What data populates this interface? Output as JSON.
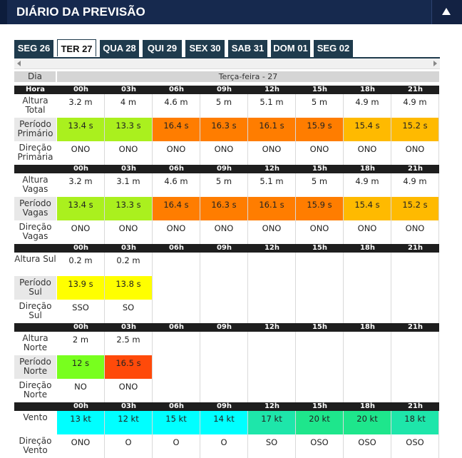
{
  "header": {
    "title": "DIÁRIO DA PREVISÃO"
  },
  "tabs": [
    {
      "label": "SEG 26",
      "active": false
    },
    {
      "label": "TER 27",
      "active": true
    },
    {
      "label": "QUA 28",
      "active": false
    },
    {
      "label": "QUI 29",
      "active": false
    },
    {
      "label": "SEX 30",
      "active": false
    },
    {
      "label": "SAB 31",
      "active": false
    },
    {
      "label": "DOM 01",
      "active": false
    },
    {
      "label": "SEG 02",
      "active": false
    }
  ],
  "table": {
    "day_label": "Dia",
    "day_title": "Terça-feira - 27",
    "hour_label": "Hora",
    "hours": [
      "00h",
      "03h",
      "06h",
      "09h",
      "12h",
      "15h",
      "18h",
      "21h"
    ],
    "sections": [
      {
        "rows": [
          {
            "label": "Altura Total",
            "shaded": false,
            "values": [
              "3.2 m",
              "4 m",
              "4.6 m",
              "5 m",
              "5.1 m",
              "5 m",
              "4.9 m",
              "4.9 m"
            ],
            "colors": []
          },
          {
            "label": "Período Primário",
            "shaded": true,
            "values": [
              "13.4 s",
              "13.3 s",
              "16.4 s",
              "16.3 s",
              "16.1 s",
              "15.9 s",
              "15.4 s",
              "15.2 s"
            ],
            "colors": [
              "#aaf01e",
              "#aaf01e",
              "#ff7d00",
              "#ff7d00",
              "#ff7d00",
              "#ff7d00",
              "#ffba00",
              "#ffba00"
            ]
          },
          {
            "label": "Direção Primária",
            "shaded": false,
            "values": [
              "ONO",
              "ONO",
              "ONO",
              "ONO",
              "ONO",
              "ONO",
              "ONO",
              "ONO"
            ],
            "colors": []
          }
        ]
      },
      {
        "rows": [
          {
            "label": "Altura Vagas",
            "shaded": false,
            "values": [
              "3.2 m",
              "3.1 m",
              "4.6 m",
              "5 m",
              "5.1 m",
              "5 m",
              "4.9 m",
              "4.9 m"
            ],
            "colors": []
          },
          {
            "label": "Período Vagas",
            "shaded": true,
            "values": [
              "13.4 s",
              "13.3 s",
              "16.4 s",
              "16.3 s",
              "16.1 s",
              "15.9 s",
              "15.4 s",
              "15.2 s"
            ],
            "colors": [
              "#aaf01e",
              "#aaf01e",
              "#ff7d00",
              "#ff7d00",
              "#ff7d00",
              "#ff7d00",
              "#ffba00",
              "#ffba00"
            ]
          },
          {
            "label": "Direção Vagas",
            "shaded": false,
            "values": [
              "ONO",
              "ONO",
              "ONO",
              "ONO",
              "ONO",
              "ONO",
              "ONO",
              "ONO"
            ],
            "colors": []
          }
        ]
      },
      {
        "rows": [
          {
            "label": "Altura Sul",
            "shaded": false,
            "values": [
              "0.2 m",
              "0.2 m",
              "",
              "",
              "",
              "",
              "",
              ""
            ],
            "colors": []
          },
          {
            "label": "Período Sul",
            "shaded": true,
            "values": [
              "13.9 s",
              "13.8 s",
              "",
              "",
              "",
              "",
              "",
              ""
            ],
            "colors": [
              "#ffff00",
              "#ffff00",
              "",
              "",
              "",
              "",
              "",
              ""
            ]
          },
          {
            "label": "Direção Sul",
            "shaded": false,
            "values": [
              "SSO",
              "SO",
              "",
              "",
              "",
              "",
              "",
              ""
            ],
            "colors": []
          }
        ]
      },
      {
        "rows": [
          {
            "label": "Altura Norte",
            "shaded": false,
            "values": [
              "2 m",
              "2.5 m",
              "",
              "",
              "",
              "",
              "",
              ""
            ],
            "colors": []
          },
          {
            "label": "Período Norte",
            "shaded": true,
            "values": [
              "12 s",
              "16.5 s",
              "",
              "",
              "",
              "",
              "",
              ""
            ],
            "colors": [
              "#78ff1e",
              "#ff4a0a",
              "",
              "",
              "",
              "",
              "",
              ""
            ]
          },
          {
            "label": "Direção Norte",
            "shaded": false,
            "values": [
              "NO",
              "ONO",
              "",
              "",
              "",
              "",
              "",
              ""
            ],
            "colors": []
          }
        ]
      },
      {
        "rows": [
          {
            "label": "Vento",
            "shaded": false,
            "values": [
              "13 kt",
              "12 kt",
              "15 kt",
              "14 kt",
              "17 kt",
              "20 kt",
              "20 kt",
              "18 kt"
            ],
            "colors": [
              "#00ffff",
              "#00ffff",
              "#00ffff",
              "#00ffff",
              "#1ee6aa",
              "#1ee68c",
              "#1ee68c",
              "#1ee6aa"
            ]
          },
          {
            "label": "Direção Vento",
            "shaded": false,
            "values": [
              "ONO",
              "O",
              "O",
              "O",
              "SO",
              "OSO",
              "OSO",
              "OSO"
            ],
            "colors": []
          }
        ]
      }
    ]
  }
}
